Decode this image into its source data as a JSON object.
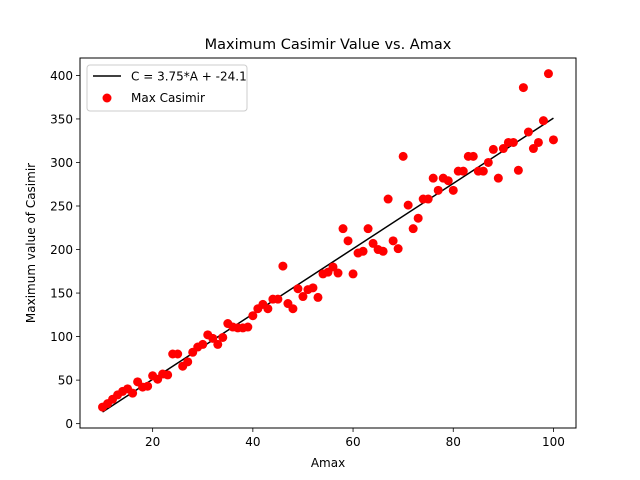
{
  "chart_data": {
    "type": "scatter",
    "title": "Maximum Casimir Value vs. Amax",
    "xlabel": "Amax",
    "ylabel": "Maximum value of Casimir",
    "xlim": [
      5.5,
      104.5
    ],
    "ylim": [
      -5,
      420
    ],
    "xticks": [
      20,
      40,
      60,
      80,
      100
    ],
    "yticks": [
      0,
      50,
      100,
      150,
      200,
      250,
      300,
      350,
      400
    ],
    "grid": false,
    "legend_position": "top-left",
    "series": [
      {
        "name": "C = 3.75*A + -24.1",
        "kind": "line",
        "color": "#000000",
        "slope": 3.75,
        "intercept": -24.1,
        "x_range": [
          10,
          100
        ]
      },
      {
        "name": "Max Casimir",
        "kind": "scatter",
        "color": "#ff0000",
        "points": [
          [
            10,
            19
          ],
          [
            11,
            23
          ],
          [
            12,
            28
          ],
          [
            13,
            33
          ],
          [
            14,
            37
          ],
          [
            15,
            40
          ],
          [
            16,
            35
          ],
          [
            17,
            48
          ],
          [
            18,
            42
          ],
          [
            19,
            43
          ],
          [
            20,
            55
          ],
          [
            21,
            51
          ],
          [
            22,
            57
          ],
          [
            23,
            56
          ],
          [
            24,
            80
          ],
          [
            25,
            80
          ],
          [
            26,
            66
          ],
          [
            27,
            71
          ],
          [
            28,
            82
          ],
          [
            29,
            88
          ],
          [
            30,
            91
          ],
          [
            31,
            102
          ],
          [
            32,
            98
          ],
          [
            33,
            91
          ],
          [
            34,
            99
          ],
          [
            35,
            115
          ],
          [
            36,
            111
          ],
          [
            37,
            110
          ],
          [
            38,
            110
          ],
          [
            39,
            111
          ],
          [
            40,
            124
          ],
          [
            41,
            132
          ],
          [
            42,
            137
          ],
          [
            43,
            132
          ],
          [
            44,
            143
          ],
          [
            45,
            143
          ],
          [
            46,
            181
          ],
          [
            47,
            138
          ],
          [
            48,
            132
          ],
          [
            49,
            155
          ],
          [
            50,
            146
          ],
          [
            51,
            154
          ],
          [
            52,
            156
          ],
          [
            53,
            145
          ],
          [
            54,
            172
          ],
          [
            55,
            174
          ],
          [
            56,
            180
          ],
          [
            57,
            173
          ],
          [
            58,
            224
          ],
          [
            59,
            210
          ],
          [
            60,
            172
          ],
          [
            61,
            196
          ],
          [
            62,
            198
          ],
          [
            63,
            224
          ],
          [
            64,
            207
          ],
          [
            65,
            200
          ],
          [
            66,
            198
          ],
          [
            67,
            258
          ],
          [
            68,
            210
          ],
          [
            69,
            201
          ],
          [
            70,
            307
          ],
          [
            71,
            251
          ],
          [
            72,
            224
          ],
          [
            73,
            236
          ],
          [
            74,
            258
          ],
          [
            75,
            258
          ],
          [
            76,
            282
          ],
          [
            77,
            268
          ],
          [
            78,
            282
          ],
          [
            79,
            279
          ],
          [
            80,
            268
          ],
          [
            81,
            290
          ],
          [
            82,
            290
          ],
          [
            83,
            307
          ],
          [
            84,
            307
          ],
          [
            85,
            290
          ],
          [
            86,
            290
          ],
          [
            87,
            300
          ],
          [
            88,
            315
          ],
          [
            89,
            282
          ],
          [
            90,
            316
          ],
          [
            91,
            323
          ],
          [
            92,
            323
          ],
          [
            93,
            291
          ],
          [
            94,
            386
          ],
          [
            95,
            335
          ],
          [
            96,
            316
          ],
          [
            97,
            323
          ],
          [
            98,
            348
          ],
          [
            99,
            402
          ],
          [
            100,
            326
          ]
        ]
      }
    ]
  }
}
